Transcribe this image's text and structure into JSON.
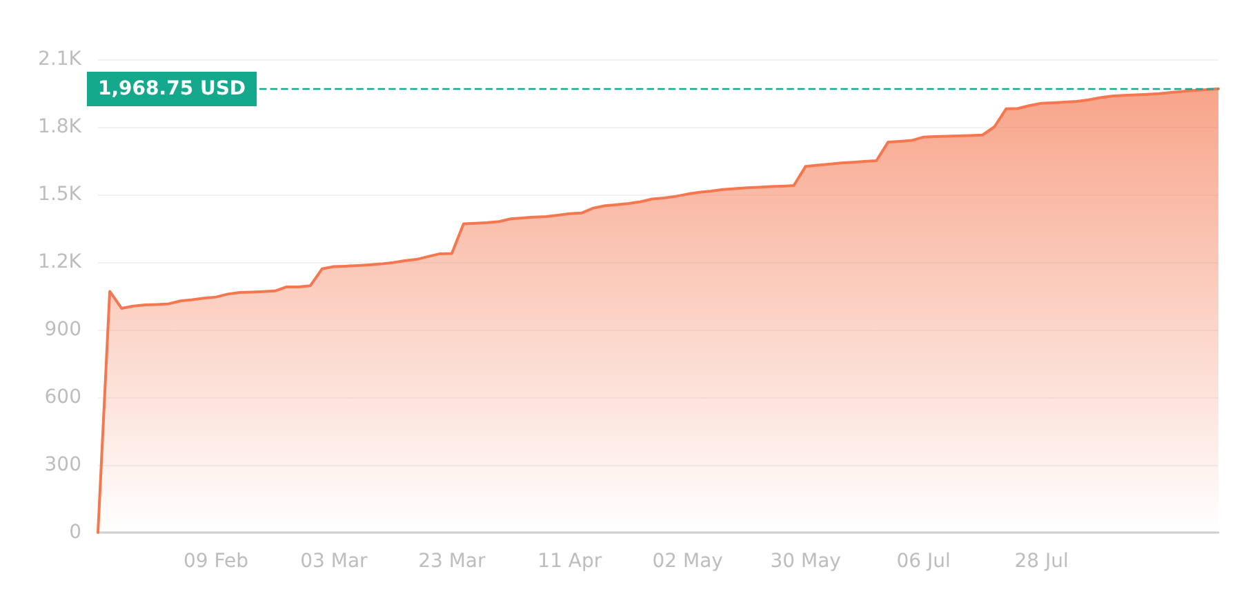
{
  "chart_data": {
    "type": "area",
    "categories": [
      null,
      null,
      null,
      null,
      null,
      null,
      null,
      null,
      null,
      null,
      "09 Feb",
      null,
      null,
      null,
      null,
      null,
      null,
      null,
      null,
      null,
      "03 Mar",
      null,
      null,
      null,
      null,
      null,
      null,
      null,
      null,
      null,
      "23 Mar",
      null,
      null,
      null,
      null,
      null,
      null,
      null,
      null,
      null,
      "11 Apr",
      null,
      null,
      null,
      null,
      null,
      null,
      null,
      null,
      null,
      "02 May",
      null,
      null,
      null,
      null,
      null,
      null,
      null,
      null,
      null,
      "30 May",
      null,
      null,
      null,
      null,
      null,
      null,
      null,
      null,
      null,
      "06 Jul",
      null,
      null,
      null,
      null,
      null,
      null,
      null,
      null,
      null,
      "28 Jul",
      null,
      null,
      null,
      null,
      null,
      null,
      null,
      null,
      null,
      null,
      null,
      null,
      null,
      null,
      null
    ],
    "series": [
      {
        "color": "#f4774f",
        "values": [
          0,
          1070,
          995,
          1005,
          1010,
          1012,
          1015,
          1028,
          1033,
          1040,
          1045,
          1058,
          1065,
          1067,
          1069,
          1072,
          1090,
          1090,
          1095,
          1170,
          1180,
          1182,
          1185,
          1188,
          1192,
          1198,
          1206,
          1212,
          1225,
          1237,
          1238,
          1370,
          1372,
          1375,
          1380,
          1392,
          1396,
          1400,
          1402,
          1408,
          1415,
          1418,
          1440,
          1450,
          1455,
          1460,
          1468,
          1480,
          1485,
          1492,
          1502,
          1510,
          1515,
          1522,
          1526,
          1530,
          1532,
          1535,
          1537,
          1540,
          1625,
          1630,
          1635,
          1640,
          1643,
          1647,
          1650,
          1733,
          1736,
          1740,
          1755,
          1757,
          1759,
          1760,
          1762,
          1764,
          1800,
          1880,
          1882,
          1895,
          1905,
          1907,
          1910,
          1913,
          1920,
          1930,
          1937,
          1940,
          1942,
          1945,
          1948,
          1953,
          1958,
          1962,
          1965,
          1969
        ]
      }
    ],
    "ylim": [
      0,
      2100
    ],
    "yticks": [
      0,
      300,
      600,
      900,
      {
        "value": 1200,
        "label": "1.2K"
      },
      {
        "value": 1500,
        "label": "1.5K"
      },
      {
        "value": 1800,
        "label": "1.8K"
      },
      {
        "value": 2100,
        "label": "2.1K"
      }
    ],
    "grid": "y",
    "marker": "none",
    "line_style": "solid",
    "ref_lines": [
      {
        "axis": "y",
        "value": 1968.75,
        "label": "1,968.75 USD",
        "color": "#14a88c",
        "line_style": "dashed"
      }
    ]
  }
}
